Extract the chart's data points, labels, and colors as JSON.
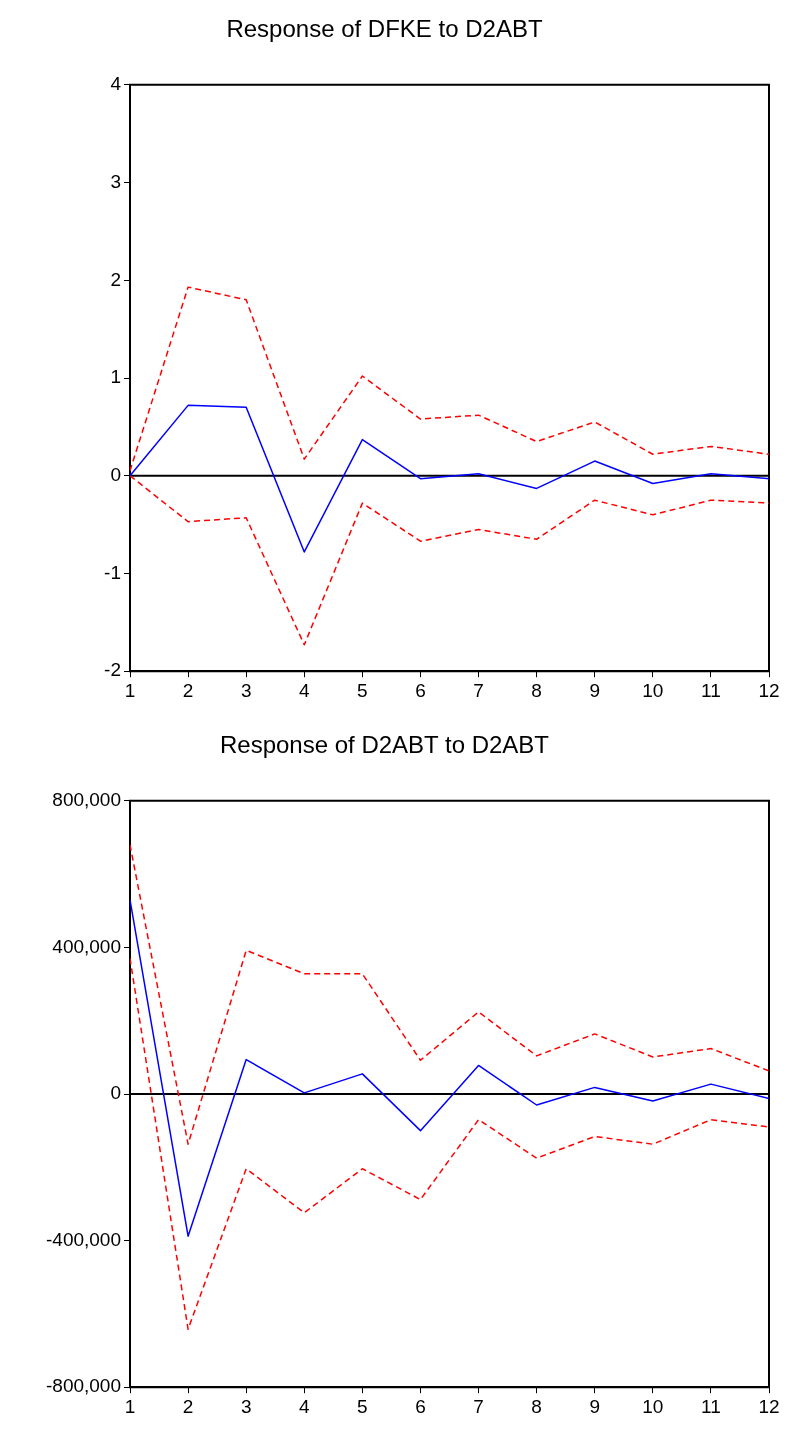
{
  "chart_data": [
    {
      "type": "line",
      "title": "Response of DFKE to D2ABT",
      "x": [
        1,
        2,
        3,
        4,
        5,
        6,
        7,
        8,
        9,
        10,
        11,
        12
      ],
      "xlim": [
        1,
        12
      ],
      "xticks": [
        1,
        2,
        3,
        4,
        5,
        6,
        7,
        8,
        9,
        10,
        11,
        12
      ],
      "ylim": [
        -2,
        4
      ],
      "yticks": [
        -2,
        -1,
        0,
        1,
        2,
        3,
        4
      ],
      "grid": false,
      "legend": false,
      "marker": "none",
      "ref_lines": [
        {
          "axis": "y",
          "value": 0,
          "color": "#000000",
          "line_style": "solid"
        }
      ],
      "series": [
        {
          "color": "#0000ff",
          "line_style": "solid",
          "values": [
            0,
            0.72,
            0.7,
            -0.78,
            0.37,
            -0.03,
            0.02,
            -0.13,
            0.15,
            -0.08,
            0.02,
            -0.03
          ]
        },
        {
          "color": "#ff0000",
          "line_style": "dashed",
          "values": [
            0.05,
            1.93,
            1.8,
            0.17,
            1.02,
            0.58,
            0.62,
            0.35,
            0.55,
            0.22,
            0.3,
            0.22
          ]
        },
        {
          "color": "#ff0000",
          "line_style": "dashed",
          "values": [
            0,
            -0.47,
            -0.43,
            -1.73,
            -0.28,
            -0.67,
            -0.55,
            -0.65,
            -0.25,
            -0.4,
            -0.25,
            -0.28
          ]
        }
      ]
    },
    {
      "type": "line",
      "title": "Response of D2ABT to D2ABT",
      "x": [
        1,
        2,
        3,
        4,
        5,
        6,
        7,
        8,
        9,
        10,
        11,
        12
      ],
      "xlim": [
        1,
        12
      ],
      "xticks": [
        1,
        2,
        3,
        4,
        5,
        6,
        7,
        8,
        9,
        10,
        11,
        12
      ],
      "ylim": [
        -800000,
        800000
      ],
      "yticks": [
        {
          "value": -800000,
          "label": "-800,000"
        },
        {
          "value": -400000,
          "label": "-400,000"
        },
        0,
        {
          "value": 400000,
          "label": "400,000"
        },
        {
          "value": 800000,
          "label": "800,000"
        }
      ],
      "grid": false,
      "legend": false,
      "marker": "none",
      "ref_lines": [
        {
          "axis": "y",
          "value": 0,
          "color": "#000000",
          "line_style": "solid"
        }
      ],
      "series": [
        {
          "color": "#0000ff",
          "line_style": "solid",
          "values": [
            530000,
            -388000,
            94000,
            3000,
            55000,
            -100000,
            78000,
            -30000,
            18000,
            -19000,
            27000,
            -12000
          ]
        },
        {
          "color": "#ff0000",
          "line_style": "dashed",
          "values": [
            680000,
            -137000,
            392000,
            328000,
            328000,
            92000,
            224000,
            104000,
            164000,
            101000,
            124000,
            63000
          ]
        },
        {
          "color": "#ff0000",
          "line_style": "dashed",
          "values": [
            370000,
            -642000,
            -204000,
            -324000,
            -204000,
            -288000,
            -70000,
            -175000,
            -116000,
            -137000,
            -70000,
            -90000
          ]
        }
      ]
    }
  ]
}
